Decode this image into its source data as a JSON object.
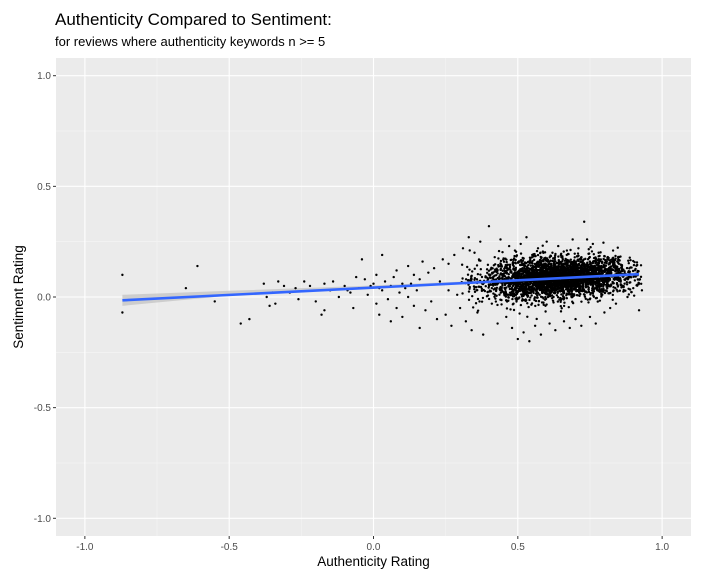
{
  "chart_data": {
    "type": "scatter",
    "title": "Authenticity Compared to Sentiment:",
    "subtitle": "for reviews where authenticity keywords n >= 5",
    "xlabel": "Authenticity Rating",
    "ylabel": "Sentiment Rating",
    "xlim": [
      -1.1,
      1.1
    ],
    "ylim": [
      -1.08,
      1.08
    ],
    "x_ticks": [
      -1.0,
      -0.5,
      0.0,
      0.5,
      1.0
    ],
    "x_tick_labels": [
      "-1.0",
      "-0.5",
      "0.0",
      "0.5",
      "1.0"
    ],
    "y_ticks": [
      -1.0,
      -0.5,
      0.0,
      0.5,
      1.0
    ],
    "y_tick_labels": [
      "-1.0",
      "-0.5",
      "0.0",
      "0.5",
      "1.0"
    ],
    "grid": true,
    "background": "#ebebeb",
    "point_color": "#000000",
    "trend_color": "#3366ff",
    "ribbon_color": "#c8c8c8",
    "trend_line": {
      "x": [
        -0.87,
        0.92
      ],
      "y": [
        -0.015,
        0.103
      ]
    },
    "confidence_band": {
      "x": [
        -0.87,
        -0.5,
        0.0,
        0.5,
        0.92
      ],
      "lower": [
        -0.04,
        0.006,
        0.044,
        0.073,
        0.093
      ],
      "upper": [
        0.01,
        0.028,
        0.052,
        0.081,
        0.113
      ]
    },
    "points": [
      [
        -0.87,
        0.1
      ],
      [
        -0.87,
        -0.07
      ],
      [
        -0.65,
        0.04
      ],
      [
        -0.61,
        0.14
      ],
      [
        -0.55,
        -0.02
      ],
      [
        -0.46,
        -0.12
      ],
      [
        -0.43,
        -0.1
      ],
      [
        -0.38,
        0.06
      ],
      [
        -0.37,
        0.0
      ],
      [
        -0.36,
        -0.04
      ],
      [
        -0.35,
        0.02
      ],
      [
        -0.34,
        -0.03
      ],
      [
        -0.33,
        0.07
      ],
      [
        -0.31,
        0.05
      ],
      [
        -0.29,
        0.02
      ],
      [
        -0.27,
        0.04
      ],
      [
        -0.26,
        -0.01
      ],
      [
        -0.24,
        0.07
      ],
      [
        -0.22,
        0.05
      ],
      [
        -0.2,
        -0.02
      ],
      [
        -0.18,
        -0.08
      ],
      [
        -0.17,
        -0.06
      ],
      [
        -0.17,
        0.06
      ],
      [
        -0.15,
        0.03
      ],
      [
        -0.14,
        0.07
      ],
      [
        -0.12,
        0.0
      ],
      [
        -0.1,
        0.05
      ],
      [
        -0.09,
        0.03
      ],
      [
        -0.08,
        0.02
      ],
      [
        -0.07,
        -0.05
      ],
      [
        -0.06,
        0.09
      ],
      [
        -0.05,
        0.04
      ],
      [
        -0.04,
        0.17
      ],
      [
        -0.03,
        0.08
      ],
      [
        -0.02,
        0.01
      ],
      [
        -0.01,
        0.05
      ],
      [
        0.0,
        0.06
      ],
      [
        0.01,
        -0.03
      ],
      [
        0.01,
        0.1
      ],
      [
        0.02,
        0.04
      ],
      [
        0.02,
        -0.08
      ],
      [
        0.03,
        0.03
      ],
      [
        0.03,
        0.19
      ],
      [
        0.04,
        0.07
      ],
      [
        0.05,
        -0.01
      ],
      [
        0.06,
        -0.11
      ],
      [
        0.06,
        0.05
      ],
      [
        0.07,
        0.09
      ],
      [
        0.08,
        -0.05
      ],
      [
        0.08,
        0.12
      ],
      [
        0.09,
        0.02
      ],
      [
        0.1,
        0.06
      ],
      [
        0.1,
        -0.09
      ],
      [
        0.11,
        0.04
      ],
      [
        0.12,
        0.14
      ],
      [
        0.12,
        0.0
      ],
      [
        0.13,
        0.06
      ],
      [
        0.14,
        -0.04
      ],
      [
        0.14,
        0.1
      ],
      [
        0.15,
        0.03
      ],
      [
        0.16,
        -0.14
      ],
      [
        0.16,
        0.08
      ],
      [
        0.17,
        0.16
      ],
      [
        0.18,
        -0.06
      ],
      [
        0.19,
        0.11
      ],
      [
        0.2,
        -0.02
      ],
      [
        0.21,
        0.13
      ],
      [
        0.22,
        -0.1
      ],
      [
        0.23,
        0.07
      ],
      [
        0.24,
        0.17
      ],
      [
        0.25,
        -0.08
      ],
      [
        0.26,
        0.03
      ],
      [
        0.26,
        0.15
      ],
      [
        0.27,
        -0.13
      ],
      [
        0.28,
        0.19
      ],
      [
        0.29,
        0.01
      ],
      [
        0.3,
        -0.05
      ],
      [
        0.31,
        0.22
      ],
      [
        0.32,
        -0.11
      ],
      [
        0.33,
        0.27
      ],
      [
        0.34,
        -0.15
      ],
      [
        0.35,
        0.2
      ],
      [
        0.36,
        -0.07
      ],
      [
        0.37,
        0.25
      ],
      [
        0.38,
        -0.17
      ],
      [
        0.4,
        0.32
      ],
      [
        0.41,
        -0.03
      ],
      [
        0.42,
        0.18
      ],
      [
        0.43,
        -0.12
      ],
      [
        0.44,
        0.26
      ],
      [
        0.46,
        -0.09
      ],
      [
        0.47,
        0.23
      ],
      [
        0.48,
        -0.14
      ],
      [
        0.49,
        0.21
      ],
      [
        0.5,
        -0.19
      ],
      [
        0.51,
        0.24
      ],
      [
        0.52,
        -0.16
      ],
      [
        0.53,
        0.27
      ],
      [
        0.54,
        -0.2
      ],
      [
        0.55,
        0.19
      ],
      [
        0.56,
        -0.13
      ],
      [
        0.57,
        0.22
      ],
      [
        0.58,
        -0.17
      ],
      [
        0.6,
        0.25
      ],
      [
        0.61,
        -0.12
      ],
      [
        0.62,
        0.2
      ],
      [
        0.63,
        -0.15
      ],
      [
        0.64,
        0.23
      ],
      [
        0.66,
        -0.11
      ],
      [
        0.67,
        0.21
      ],
      [
        0.68,
        -0.14
      ],
      [
        0.69,
        0.26
      ],
      [
        0.7,
        -0.1
      ],
      [
        0.71,
        0.22
      ],
      [
        0.72,
        -0.13
      ],
      [
        0.73,
        0.34
      ],
      [
        0.74,
        0.26
      ],
      [
        0.75,
        -0.09
      ],
      [
        0.76,
        0.24
      ],
      [
        0.77,
        -0.12
      ],
      [
        0.78,
        0.2
      ],
      [
        0.8,
        -0.07
      ],
      [
        0.81,
        0.17
      ],
      [
        0.82,
        -0.05
      ],
      [
        0.83,
        0.21
      ],
      [
        0.84,
        -0.03
      ],
      [
        0.85,
        0.15
      ],
      [
        0.86,
        0.13
      ],
      [
        0.87,
        0.06
      ],
      [
        0.88,
        0.0
      ],
      [
        0.89,
        0.09
      ],
      [
        0.9,
        0.04
      ],
      [
        0.91,
        0.1
      ],
      [
        0.92,
        -0.06
      ],
      [
        0.93,
        0.03
      ]
    ],
    "dense_cluster": {
      "x_center": 0.64,
      "x_sd": 0.13,
      "x_range": [
        0.3,
        0.93
      ],
      "y_mean_intercept": 0.045,
      "y_mean_slope": 0.065,
      "y_sd": 0.045,
      "count": 3200
    }
  }
}
